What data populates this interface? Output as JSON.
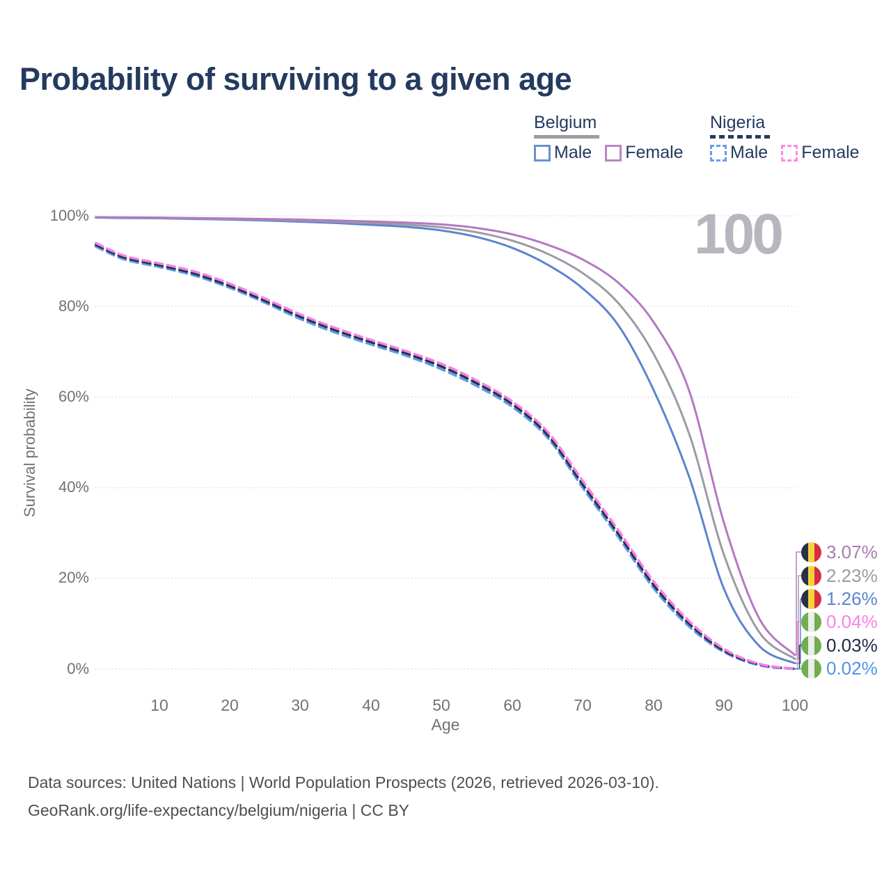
{
  "title": "Probability of surviving to a given age",
  "watermark_age": "100",
  "legend": {
    "groups": [
      {
        "label": "Belgium",
        "line_style": "solid",
        "items": [
          {
            "label": "Male",
            "color": "#5b84cf"
          },
          {
            "label": "Female",
            "color": "#b478c2"
          }
        ]
      },
      {
        "label": "Nigeria",
        "line_style": "dashed",
        "items": [
          {
            "label": "Male",
            "color": "#5f9ae8"
          },
          {
            "label": "Female",
            "color": "#fb80e3"
          }
        ]
      }
    ]
  },
  "axes": {
    "y": {
      "title": "Survival probability",
      "ticks": [
        "100%",
        "80%",
        "60%",
        "40%",
        "20%",
        "0%"
      ],
      "tick_percents": [
        100,
        80,
        60,
        40,
        20,
        0
      ],
      "range": [
        0,
        100
      ],
      "grid": true
    },
    "x": {
      "title": "Age",
      "ticks": [
        "10",
        "20",
        "30",
        "40",
        "50",
        "60",
        "70",
        "80",
        "90",
        "100"
      ],
      "tick_values": [
        10,
        20,
        30,
        40,
        50,
        60,
        70,
        80,
        90,
        100
      ],
      "range": [
        1,
        100
      ]
    }
  },
  "end_labels": [
    {
      "series": "Belgium Female",
      "flag": "belgium",
      "value": "3.07%",
      "color": "#a87cb4"
    },
    {
      "series": "Belgium Total",
      "flag": "belgium",
      "value": "2.23%",
      "color": "#9b9ba3"
    },
    {
      "series": "Belgium Male",
      "flag": "belgium",
      "value": "1.26%",
      "color": "#5b84cf"
    },
    {
      "series": "Nigeria Female",
      "flag": "nigeria",
      "value": "0.04%",
      "color": "#fb80e8"
    },
    {
      "series": "Nigeria Total",
      "flag": "nigeria",
      "value": "0.03%",
      "color": "#1f2a44"
    },
    {
      "series": "Nigeria Male",
      "flag": "nigeria",
      "value": "0.02%",
      "color": "#4f93e8"
    }
  ],
  "footer": {
    "line1": "Data sources: United Nations | World Population Prospects (2026, retrieved 2026-03-10).",
    "line2": "GeoRank.org/life-expectancy/belgium/nigeria | CC BY"
  },
  "chart_data": {
    "type": "line",
    "title": "Probability of surviving to a given age",
    "xlabel": "Age",
    "ylabel": "Survival probability",
    "xlim": [
      1,
      100
    ],
    "ylim": [
      0,
      100
    ],
    "grid": "horizontal-only",
    "ages": [
      1,
      5,
      10,
      15,
      20,
      25,
      30,
      35,
      40,
      45,
      50,
      55,
      60,
      65,
      70,
      75,
      80,
      85,
      90,
      95,
      100
    ],
    "series": [
      {
        "name": "Nigeria Male",
        "country": "Nigeria",
        "sex": "Male",
        "line_style": "dashed",
        "color": "#5f9ae8",
        "values": [
          93.2,
          90.4,
          88.7,
          86.8,
          84.1,
          80.8,
          77.2,
          74.2,
          71.6,
          69.1,
          66.1,
          62.4,
          57.8,
          51.0,
          39.9,
          29.1,
          17.8,
          9.4,
          3.7,
          0.8,
          0.02
        ],
        "end_value_pct": 0.02
      },
      {
        "name": "Nigeria Total",
        "country": "Nigeria",
        "sex": "Both",
        "line_style": "dashed",
        "color": "#273250",
        "values": [
          93.6,
          90.8,
          89.1,
          87.2,
          84.5,
          81.2,
          77.7,
          74.7,
          72.1,
          69.6,
          66.7,
          63.0,
          58.4,
          51.6,
          40.6,
          29.8,
          18.5,
          10.0,
          4.0,
          1.0,
          0.03
        ],
        "end_value_pct": 0.03
      },
      {
        "name": "Nigeria Female",
        "country": "Nigeria",
        "sex": "Female",
        "line_style": "dashed",
        "color": "#fb80e3",
        "values": [
          94.0,
          91.2,
          89.5,
          87.7,
          85.0,
          81.7,
          78.2,
          75.2,
          72.6,
          70.1,
          67.3,
          63.6,
          59.0,
          52.3,
          41.4,
          30.6,
          19.3,
          10.6,
          4.4,
          1.1,
          0.04
        ],
        "end_value_pct": 0.04
      },
      {
        "name": "Belgium Male",
        "country": "Belgium",
        "sex": "Male",
        "line_style": "solid",
        "color": "#5b84cf",
        "values": [
          99.6,
          99.5,
          99.45,
          99.3,
          99.15,
          98.95,
          98.7,
          98.4,
          98.0,
          97.55,
          96.75,
          95.3,
          92.9,
          89.2,
          83.9,
          75.8,
          61.5,
          42.5,
          17.5,
          5.0,
          1.26
        ],
        "end_value_pct": 1.26
      },
      {
        "name": "Belgium Total",
        "country": "Belgium",
        "sex": "Both",
        "line_style": "solid",
        "color": "#9b9ba3",
        "values": [
          99.65,
          99.6,
          99.5,
          99.4,
          99.3,
          99.15,
          98.95,
          98.7,
          98.4,
          98.05,
          97.45,
          96.35,
          94.5,
          91.6,
          87.3,
          80.7,
          69.5,
          52.0,
          25.0,
          8.0,
          2.23
        ],
        "end_value_pct": 2.23
      },
      {
        "name": "Belgium Female",
        "country": "Belgium",
        "sex": "Female",
        "line_style": "solid",
        "color": "#b478c2",
        "values": [
          99.7,
          99.65,
          99.6,
          99.5,
          99.4,
          99.3,
          99.15,
          98.95,
          98.75,
          98.5,
          98.1,
          97.3,
          95.9,
          93.6,
          90.3,
          85.2,
          76.5,
          61.5,
          32.0,
          11.0,
          3.07
        ],
        "end_value_pct": 3.07
      }
    ]
  }
}
